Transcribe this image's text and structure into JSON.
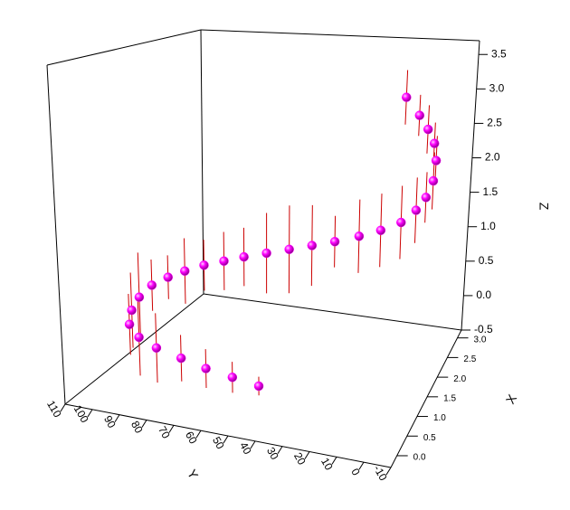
{
  "chart_data": {
    "type": "scatter3d",
    "x_label": "X",
    "y_label": "Y",
    "z_label": "Z",
    "x": [
      0.3,
      0.3,
      0.3,
      0.35,
      0.4,
      0.5,
      0.6,
      0.8,
      1.0,
      1.2,
      1.3,
      1.35,
      1.4,
      1.4,
      1.4,
      1.4,
      1.4,
      1.4,
      1.4,
      1.45,
      1.5,
      1.6,
      1.8,
      2.0,
      2.3,
      2.6,
      2.8,
      2.9,
      3.0,
      3.0
    ],
    "y": [
      45,
      55,
      65,
      75,
      85,
      93,
      98,
      100,
      100,
      98,
      93,
      87,
      80,
      72,
      64,
      55,
      46,
      37,
      28,
      19,
      11,
      4,
      0,
      -2,
      -2,
      0,
      3,
      7,
      12,
      18
    ],
    "z": [
      -0.1,
      -0.05,
      0.0,
      0.05,
      0.1,
      0.15,
      0.25,
      0.35,
      0.45,
      0.55,
      0.65,
      0.75,
      0.85,
      0.95,
      1.05,
      1.15,
      1.25,
      1.35,
      1.45,
      1.55,
      1.65,
      1.75,
      1.85,
      1.95,
      2.05,
      2.2,
      2.35,
      2.5,
      2.65,
      2.9
    ],
    "z_err": [
      0.12,
      0.2,
      0.25,
      0.3,
      0.45,
      0.5,
      0.4,
      0.5,
      0.6,
      0.35,
      0.3,
      0.45,
      0.35,
      0.4,
      0.4,
      0.55,
      0.6,
      0.55,
      0.35,
      0.5,
      0.5,
      0.5,
      0.45,
      0.35,
      0.4,
      0.35,
      0.3,
      0.35,
      0.3,
      0.4
    ],
    "color": "#ff00ff",
    "error_color": "#cc0000",
    "xlim": [
      -0.3,
      3.2
    ],
    "ylim": [
      -10,
      110
    ],
    "zlim": [
      -0.5,
      3.7
    ],
    "xticks": [
      {
        "value": 0,
        "label": "0.0"
      },
      0.5,
      {
        "value": 1,
        "label": "1.0"
      },
      1.5,
      {
        "value": 2,
        "label": "2.0"
      },
      2.5,
      {
        "value": 3,
        "label": "3.0"
      }
    ],
    "yticks": [
      -10,
      0,
      10,
      20,
      30,
      40,
      50,
      60,
      70,
      80,
      90,
      100,
      110
    ],
    "zticks": [
      -0.5,
      {
        "value": 0,
        "label": "0.0"
      },
      0.5,
      {
        "value": 1,
        "label": "1.0"
      },
      1.5,
      {
        "value": 2,
        "label": "2.0"
      },
      2.5,
      {
        "value": 3,
        "label": "3.0"
      },
      3.5
    ]
  }
}
